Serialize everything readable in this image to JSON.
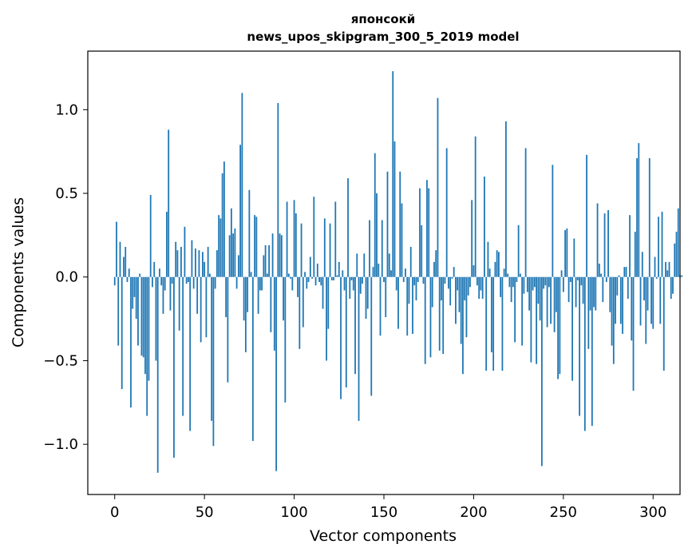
{
  "chart_data": {
    "type": "bar",
    "title": "японсокй",
    "subtitle": "news_upos_skipgram_300_5_2019 model",
    "xlabel": "Vector components",
    "ylabel": "Components values",
    "xlim": [
      -15,
      315
    ],
    "ylim": [
      -1.3,
      1.35
    ],
    "xticks": [
      0,
      50,
      100,
      150,
      200,
      250,
      300
    ],
    "xtick_labels": [
      "0",
      "50",
      "100",
      "150",
      "200",
      "250",
      "300"
    ],
    "yticks": [
      -1.0,
      -0.5,
      0.0,
      0.5,
      1.0
    ],
    "ytick_labels": [
      "−1.0",
      "−0.5",
      "0.0",
      "0.5",
      "1.0"
    ],
    "grid": false,
    "bar_color": "#1f77b4",
    "x_start": 0,
    "values": [
      -0.05,
      0.33,
      -0.41,
      0.21,
      -0.67,
      0.12,
      0.18,
      -0.03,
      0.05,
      -0.78,
      -0.19,
      -0.12,
      -0.25,
      -0.41,
      0.02,
      -0.47,
      -0.48,
      -0.58,
      -0.83,
      -0.62,
      0.49,
      -0.06,
      0.09,
      -0.5,
      -1.17,
      0.05,
      -0.05,
      -0.22,
      -0.08,
      0.39,
      0.88,
      -0.2,
      -0.04,
      -1.08,
      0.21,
      0.16,
      -0.32,
      0.18,
      -0.83,
      0.3,
      -0.04,
      -0.03,
      -0.92,
      0.22,
      -0.07,
      0.17,
      -0.22,
      0.16,
      -0.39,
      0.15,
      0.09,
      -0.36,
      0.18,
      0.02,
      -0.86,
      -1.01,
      -0.07,
      0.16,
      0.37,
      0.35,
      0.62,
      0.69,
      -0.24,
      -0.63,
      0.25,
      0.41,
      0.26,
      0.29,
      -0.07,
      0.13,
      0.79,
      1.1,
      -0.26,
      -0.45,
      -0.21,
      0.52,
      0.03,
      -0.98,
      0.37,
      0.36,
      -0.22,
      -0.08,
      -0.08,
      0.13,
      0.19,
      0.02,
      0.19,
      -0.33,
      0.26,
      -0.44,
      -1.16,
      1.04,
      0.26,
      0.25,
      -0.26,
      -0.75,
      0.45,
      0.02,
      -0.01,
      -0.08,
      0.46,
      0.38,
      -0.12,
      -0.43,
      0.32,
      -0.3,
      0.03,
      -0.07,
      -0.03,
      0.12,
      -0.01,
      0.48,
      -0.05,
      0.08,
      -0.03,
      -0.05,
      -0.19,
      0.35,
      -0.5,
      -0.31,
      0.32,
      -0.02,
      -0.02,
      0.45,
      0.01,
      0.09,
      -0.73,
      0.04,
      -0.08,
      -0.66,
      0.59,
      -0.13,
      -0.02,
      -0.08,
      -0.58,
      0.14,
      -0.86,
      -0.1,
      -0.04,
      0.14,
      -0.25,
      -0.19,
      0.34,
      -0.71,
      0.06,
      0.74,
      0.5,
      0.08,
      -0.35,
      0.34,
      -0.03,
      -0.24,
      0.63,
      0.14,
      0.04,
      1.23,
      0.81,
      -0.08,
      -0.31,
      0.63,
      0.44,
      -0.03,
      0.05,
      -0.35,
      -0.16,
      0.18,
      -0.34,
      -0.05,
      -0.14,
      -0.03,
      0.53,
      0.31,
      -0.04,
      -0.52,
      0.58,
      0.53,
      -0.48,
      -0.18,
      0.09,
      0.16,
      1.07,
      -0.44,
      -0.14,
      -0.46,
      -0.04,
      0.77,
      -0.07,
      -0.17,
      -0.01,
      0.06,
      -0.28,
      -0.08,
      -0.21,
      -0.4,
      -0.58,
      -0.14,
      -0.36,
      -0.11,
      -0.06,
      0.46,
      0.07,
      0.84,
      -0.05,
      -0.13,
      -0.08,
      -0.13,
      0.6,
      -0.56,
      0.21,
      0.05,
      -0.45,
      -0.56,
      0.09,
      0.16,
      0.15,
      -0.12,
      -0.56,
      0.05,
      0.93,
      0.02,
      -0.06,
      -0.15,
      -0.06,
      -0.39,
      -0.03,
      0.31,
      0.02,
      -0.41,
      -0.1,
      0.77,
      -0.09,
      -0.2,
      -0.51,
      -0.08,
      -0.06,
      -0.52,
      -0.16,
      -0.26,
      -1.13,
      -0.07,
      -0.05,
      -0.3,
      -0.06,
      -0.28,
      0.67,
      -0.33,
      -0.21,
      -0.61,
      -0.58,
      0.04,
      -0.09,
      0.28,
      0.29,
      -0.15,
      -0.03,
      -0.62,
      0.23,
      -0.18,
      -0.02,
      -0.83,
      -0.05,
      -0.16,
      -0.92,
      0.73,
      -0.43,
      -0.2,
      -0.89,
      -0.18,
      -0.2,
      0.44,
      0.08,
      0.02,
      -0.15,
      0.38,
      -0.03,
      0.4,
      -0.21,
      -0.41,
      -0.52,
      -0.28,
      -0.11,
      0.01,
      -0.28,
      -0.34,
      0.06,
      0.06,
      -0.13,
      0.37,
      -0.38,
      -0.68,
      0.27,
      0.71,
      0.8,
      -0.29,
      0.15,
      -0.14,
      -0.4,
      -0.2,
      0.71,
      -0.28,
      -0.31,
      0.12,
      -0.01,
      0.36,
      -0.28,
      0.39,
      -0.56,
      0.09,
      0.04,
      0.09,
      -0.13,
      -0.1,
      0.2,
      0.27,
      0.41,
      0.01,
      0.01
    ]
  }
}
